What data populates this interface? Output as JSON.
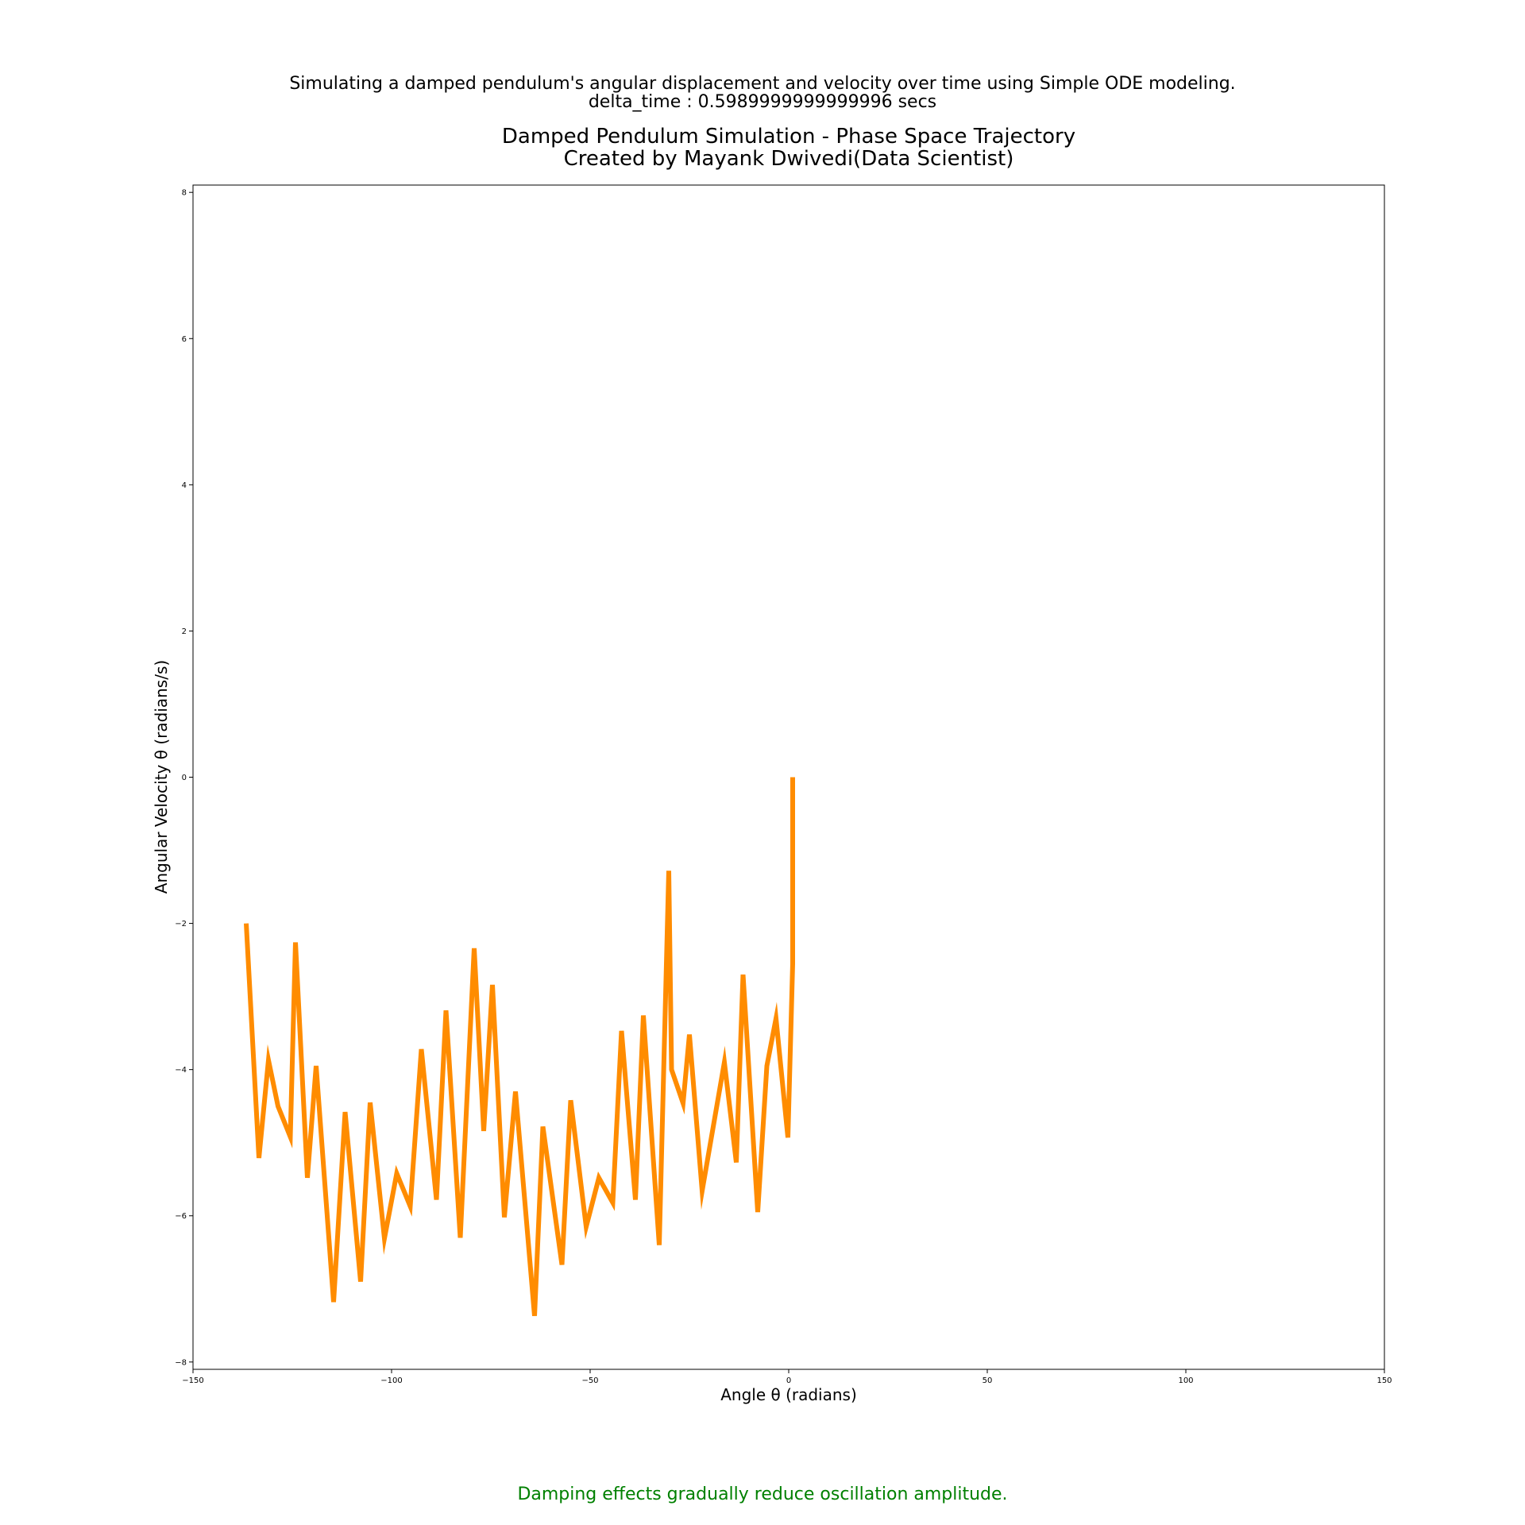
{
  "figure": {
    "suptitle_line1": "Simulating a damped pendulum's angular displacement and velocity over time using Simple ODE modeling.",
    "suptitle_line2": "delta_time : 0.5989999999999996 secs",
    "note": "Damping effects gradually reduce oscillation amplitude.",
    "note_color": "#008000"
  },
  "chart_data": {
    "type": "line",
    "title_line1": "Damped Pendulum Simulation - Phase Space Trajectory",
    "title_line2": "Created by Mayank Dwivedi(Data Scientist)",
    "xlabel": "Angle θ (radians)",
    "ylabel": "Angular Velocity θ (radians/s)",
    "xlim": [
      -150,
      150
    ],
    "ylim": [
      -8.1,
      8.1
    ],
    "xticks": [
      -150,
      -100,
      -50,
      0,
      50,
      100,
      150
    ],
    "xtick_labels": [
      "−150",
      "−100",
      "−50",
      "0",
      "50",
      "100",
      "150"
    ],
    "yticks": [
      -8,
      -6,
      -4,
      -2,
      0,
      2,
      4,
      6,
      8
    ],
    "ytick_labels": [
      "−8",
      "−6",
      "−4",
      "−2",
      "0",
      "2",
      "4",
      "6",
      "8"
    ],
    "grid": false,
    "series": [
      {
        "color": "#ff8c00",
        "x": [
          1.0,
          1.0,
          1.0,
          -0.2,
          -3.2,
          -5.5,
          -7.8,
          -11.5,
          -13.2,
          -16.2,
          -21.8,
          -25.0,
          -26.6,
          -29.5,
          -30.2,
          -32.6,
          -36.6,
          -38.6,
          -42.1,
          -44.3,
          -47.8,
          -51.0,
          -54.9,
          -57.1,
          -61.9,
          -64.0,
          -68.8,
          -71.6,
          -74.6,
          -76.8,
          -79.2,
          -82.7,
          -86.3,
          -88.7,
          -92.5,
          -95.3,
          -98.7,
          -101.8,
          -105.4,
          -107.8,
          -111.7,
          -114.6,
          -119.0,
          -121.2,
          -124.2,
          -125.5,
          -128.6,
          -131.0,
          -133.4,
          -136.6
        ],
        "y": [
          0.0,
          -1.6,
          -2.55,
          -4.93,
          -3.3,
          -3.95,
          -5.95,
          -2.7,
          -5.27,
          -3.9,
          -5.66,
          -3.52,
          -4.46,
          -4.0,
          -1.28,
          -6.4,
          -3.26,
          -5.78,
          -3.47,
          -5.82,
          -5.48,
          -6.15,
          -4.42,
          -6.67,
          -4.78,
          -7.37,
          -4.3,
          -6.02,
          -2.84,
          -4.84,
          -2.34,
          -6.3,
          -3.19,
          -5.78,
          -3.72,
          -5.87,
          -5.42,
          -6.31,
          -4.45,
          -6.9,
          -4.58,
          -7.18,
          -3.95,
          -5.48,
          -2.26,
          -4.92,
          -4.5,
          -3.87,
          -5.21,
          -2.0
        ]
      }
    ]
  }
}
